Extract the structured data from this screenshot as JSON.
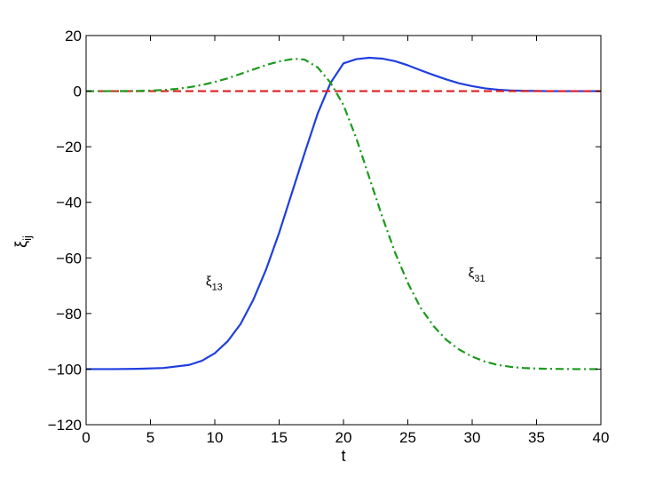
{
  "chart_data": {
    "type": "line",
    "title": "",
    "xlabel": "t",
    "ylabel": "ξ",
    "ylabel_sub": "ij",
    "xlim": [
      0,
      40
    ],
    "ylim": [
      -120,
      20
    ],
    "xticks": [
      0,
      5,
      10,
      15,
      20,
      25,
      30,
      35,
      40
    ],
    "yticks": [
      20,
      0,
      -20,
      -40,
      -60,
      -80,
      -100,
      -120
    ],
    "xtick_labels": [
      "0",
      "5",
      "10",
      "15",
      "20",
      "25",
      "30",
      "35",
      "40"
    ],
    "ytick_labels": [
      "20",
      "0",
      "−20",
      "−40",
      "−60",
      "−80",
      "−100",
      "−120"
    ],
    "grid": false,
    "series": [
      {
        "style": "solid",
        "color": "#1f3fe0",
        "x": [
          0,
          2,
          4,
          6,
          8,
          9,
          10,
          11,
          12,
          13,
          14,
          15,
          16,
          17,
          18,
          19,
          20,
          21,
          22,
          23,
          24,
          25,
          26,
          27,
          28,
          29,
          30,
          31,
          32,
          33,
          34,
          35,
          36,
          38,
          40
        ],
        "y": [
          -100,
          -100,
          -99.9,
          -99.6,
          -98.5,
          -97,
          -94.3,
          -90,
          -83.8,
          -75,
          -64,
          -51,
          -36.5,
          -22,
          -8,
          3,
          10,
          11.5,
          12,
          11.7,
          10.8,
          9.3,
          7.5,
          5.8,
          4.2,
          2.8,
          1.8,
          1,
          0.5,
          0.25,
          0.1,
          0.05,
          0,
          0,
          0
        ]
      },
      {
        "style": "dashed",
        "color": "#e01f1f",
        "x": [
          0,
          40
        ],
        "y": [
          0,
          0
        ]
      },
      {
        "style": "dash-dot",
        "color": "#1a9a1a",
        "x": [
          0,
          2,
          4,
          5,
          6,
          7,
          8,
          9,
          10,
          11,
          12,
          13,
          14,
          15,
          16,
          16.5,
          17,
          18,
          19,
          20,
          21,
          22,
          23,
          24,
          25,
          26,
          27,
          28,
          29,
          30,
          31,
          32,
          33,
          34,
          35,
          36,
          38,
          40
        ],
        "y": [
          0,
          0,
          0.05,
          0.2,
          0.4,
          0.8,
          1.4,
          2.2,
          3.3,
          4.6,
          6.2,
          7.8,
          9.4,
          10.7,
          11.5,
          11.6,
          11.3,
          8.5,
          3,
          -5,
          -17,
          -31,
          -45,
          -58,
          -69,
          -78,
          -84.5,
          -89.5,
          -93,
          -95.5,
          -97.3,
          -98.5,
          -99.2,
          -99.6,
          -99.8,
          -99.9,
          -100,
          -100
        ]
      }
    ],
    "annotations": [
      {
        "base": "ξ",
        "sub": "13",
        "x": 9.3,
        "y": -70
      },
      {
        "base": "ξ",
        "sub": "31",
        "x": 29.7,
        "y": -67
      }
    ]
  }
}
